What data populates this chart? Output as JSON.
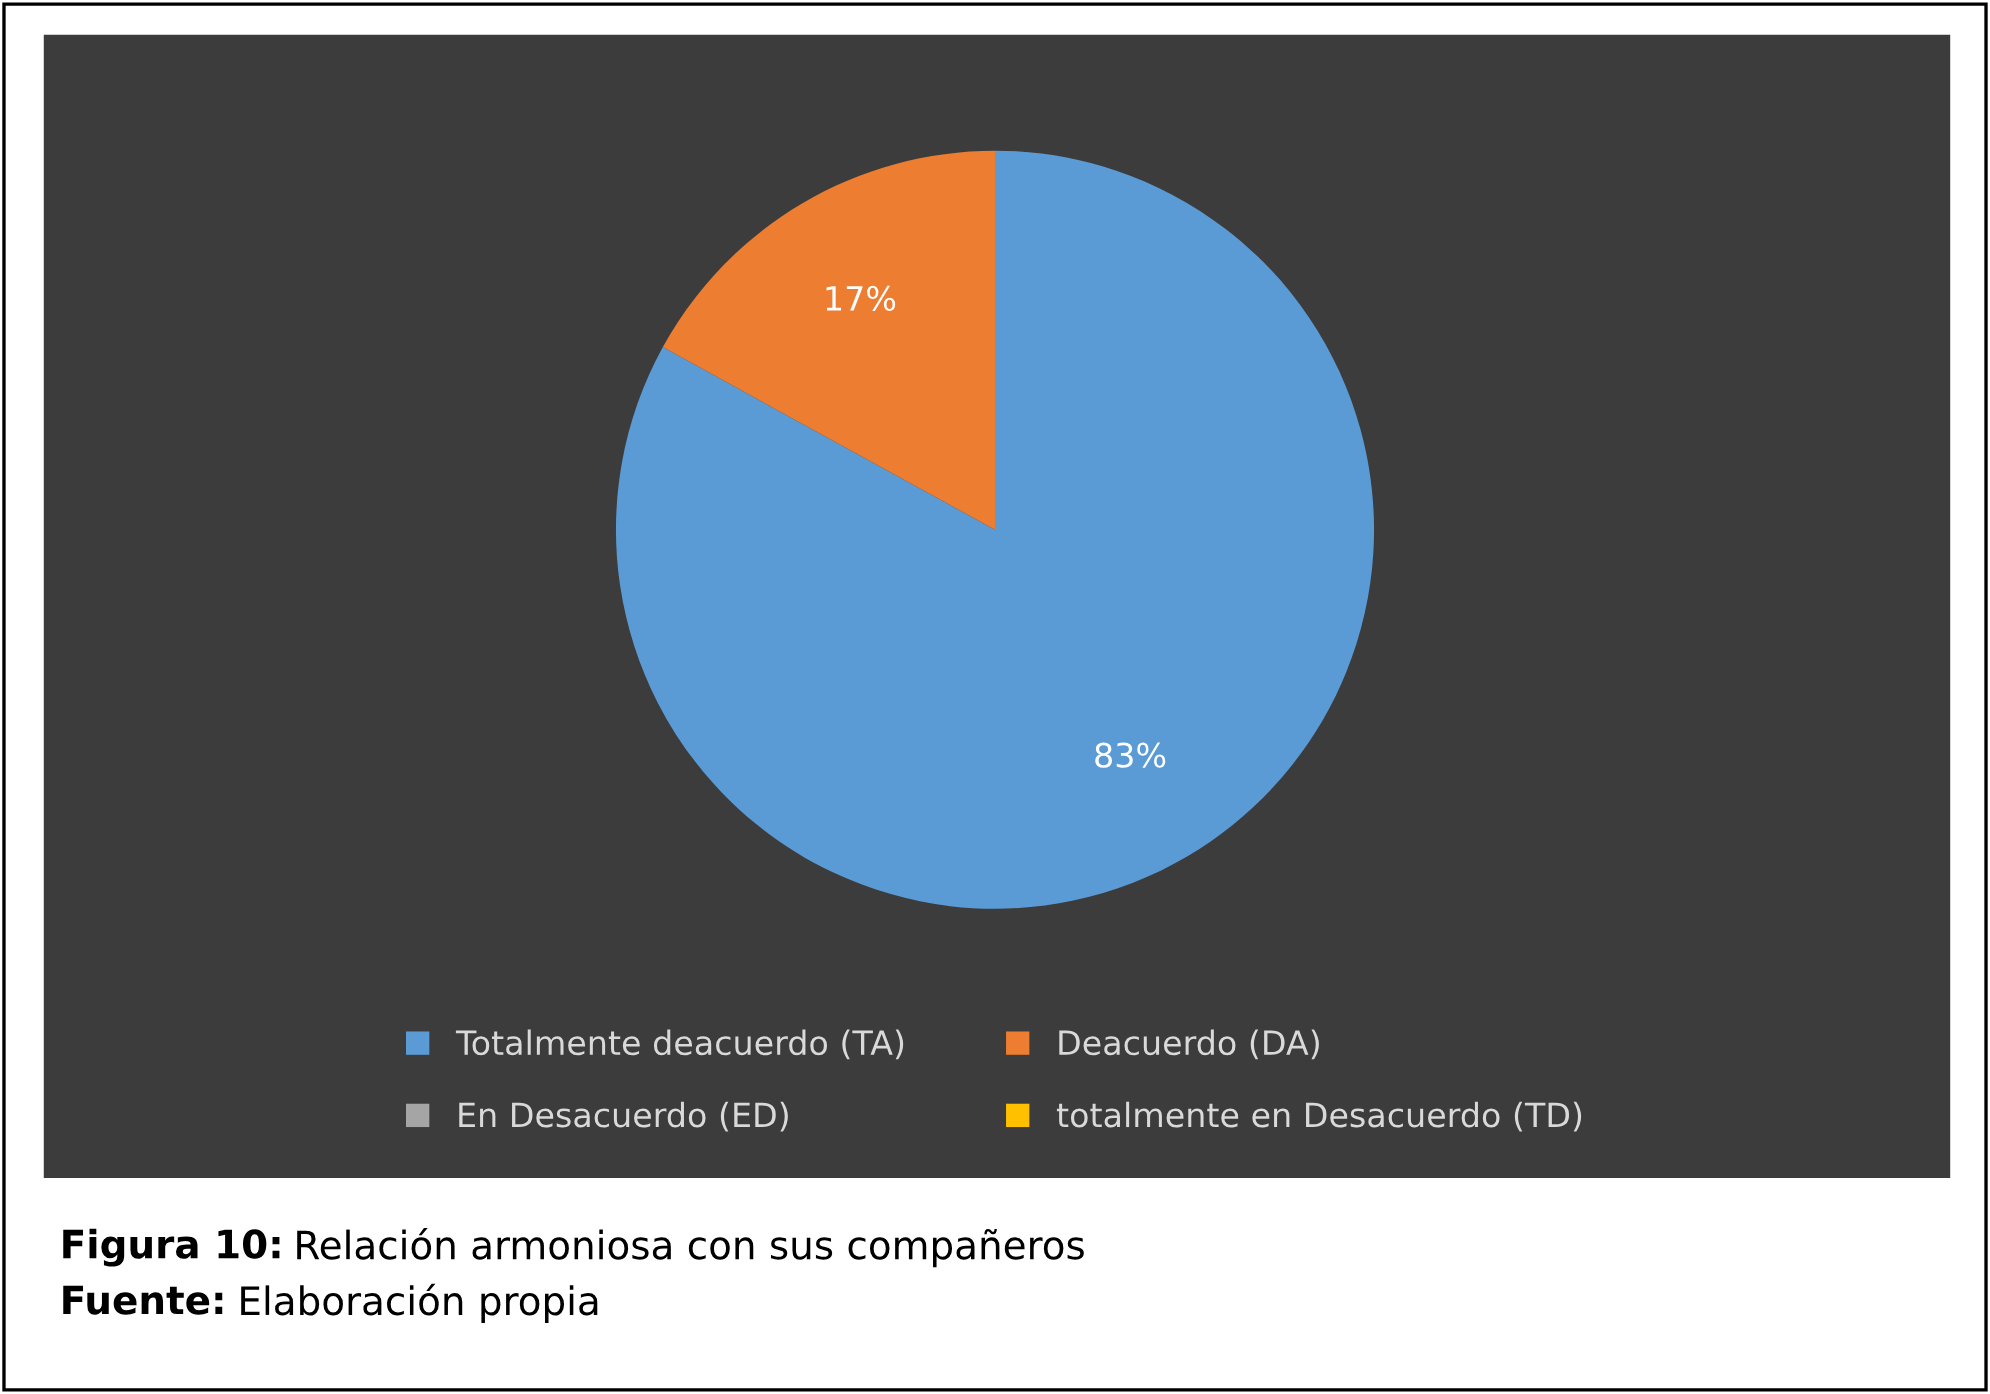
{
  "chart_data": {
    "type": "pie",
    "categories": [
      "Totalmente deacuerdo (TA)",
      "Deacuerdo (DA)",
      "En Desacuerdo (ED)",
      "totalmente en Desacuerdo (TD)"
    ],
    "values": [
      83,
      17,
      0,
      0
    ],
    "colors": [
      "#5b9bd5",
      "#ed7d31",
      "#a5a5a5",
      "#ffc000"
    ],
    "value_labels": [
      "83%",
      "17%",
      null,
      null
    ],
    "legend": "bottom",
    "annotations": [
      "Figura 10: Relación armoniosa con sus compañeros",
      "Fuente: Elaboración propia"
    ]
  }
}
